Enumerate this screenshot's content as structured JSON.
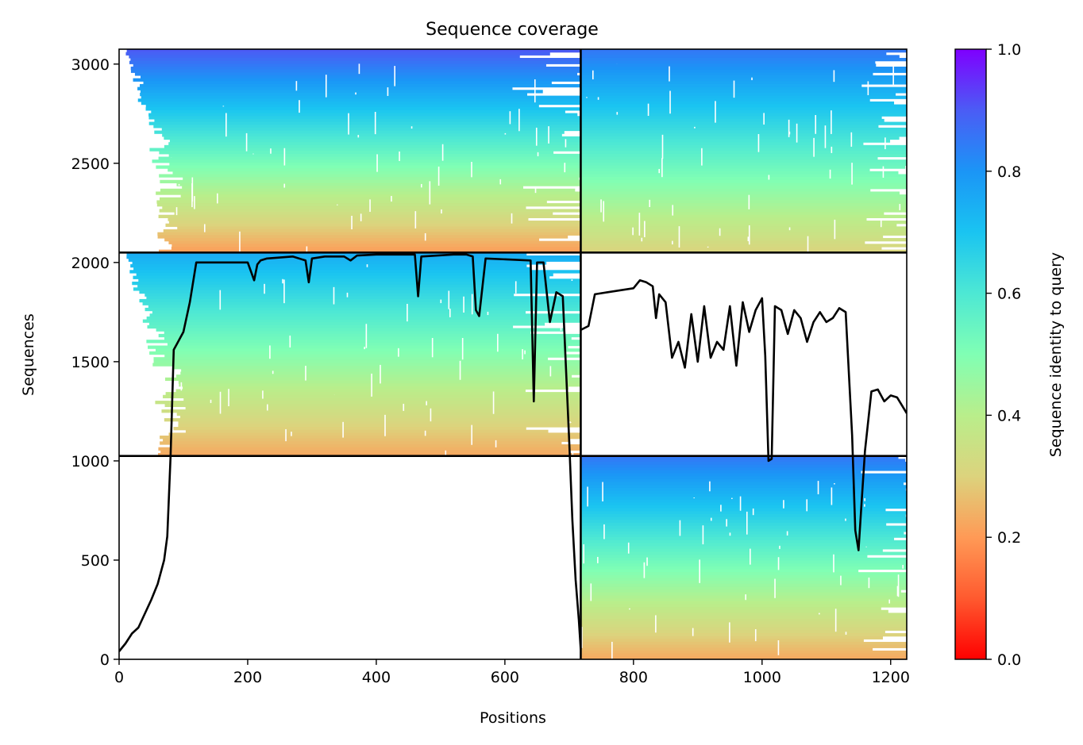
{
  "chart_data": {
    "type": "heatmap",
    "title": "Sequence coverage",
    "xlabel": "Positions",
    "ylabel": "Sequences",
    "xlim": [
      0,
      1225
    ],
    "ylim": [
      0,
      3075
    ],
    "x_ticks": [
      0,
      200,
      400,
      600,
      800,
      1000,
      1200
    ],
    "y_ticks": [
      0,
      500,
      1000,
      1500,
      2000,
      2500,
      3000
    ],
    "x_tick_labels": [
      "0",
      "200",
      "400",
      "600",
      "800",
      "1000",
      "1200"
    ],
    "y_tick_labels": [
      "0",
      "500",
      "1000",
      "1500",
      "2000",
      "2500",
      "3000"
    ],
    "colorbar": {
      "label": "Sequence identity to query",
      "range": [
        0,
        1
      ],
      "ticks": [
        0.0,
        0.2,
        0.4,
        0.6,
        0.8,
        1.0
      ],
      "tick_labels": [
        "0.0",
        "0.2",
        "0.4",
        "0.6",
        "0.8",
        "1.0"
      ],
      "colormap": "rainbow_r"
    },
    "chain_boundaries_x": [
      718
    ],
    "chain_boundaries_y": [
      1025,
      2050
    ],
    "blocks": [
      {
        "name": "chain-A-top",
        "x": [
          0,
          718
        ],
        "y": [
          2050,
          3075
        ],
        "identity_top": 0.9,
        "identity_bottom": 0.2,
        "coverage_start_shift": 80
      },
      {
        "name": "chain-A-middle",
        "x": [
          0,
          718
        ],
        "y": [
          1025,
          2050
        ],
        "identity_top": 0.75,
        "identity_bottom": 0.22,
        "coverage_start_shift": 80
      },
      {
        "name": "chain-B-top",
        "x": [
          718,
          1225
        ],
        "y": [
          2050,
          3075
        ],
        "identity_top": 0.85,
        "identity_bottom": 0.3,
        "coverage_start_shift": 0
      },
      {
        "name": "chain-B-bottom",
        "x": [
          718,
          1225
        ],
        "y": [
          0,
          1025
        ],
        "identity_top": 0.85,
        "identity_bottom": 0.22,
        "coverage_start_shift": 0
      }
    ],
    "coverage_series": [
      {
        "name": "",
        "x": [
          0,
          10,
          20,
          30,
          40,
          50,
          60,
          70,
          75,
          80,
          85,
          90,
          100,
          110,
          120,
          200,
          210,
          215,
          220,
          230,
          270,
          290,
          295,
          300,
          320,
          350,
          360,
          370,
          400,
          460,
          465,
          470,
          520,
          540,
          550,
          555,
          560,
          570,
          640,
          645,
          650,
          660,
          670,
          680,
          690,
          700,
          705,
          710,
          715,
          718
        ],
        "y": [
          40,
          80,
          130,
          160,
          230,
          300,
          380,
          500,
          620,
          1020,
          1560,
          1590,
          1650,
          1800,
          2000,
          2000,
          1910,
          1990,
          2010,
          2020,
          2030,
          2010,
          1900,
          2020,
          2030,
          2030,
          2010,
          2035,
          2040,
          2040,
          1830,
          2030,
          2040,
          2040,
          2030,
          1760,
          1730,
          2020,
          2010,
          1300,
          2000,
          2000,
          1700,
          1850,
          1830,
          1100,
          700,
          400,
          200,
          50
        ]
      },
      {
        "name": "",
        "x": [
          718,
          730,
          740,
          760,
          780,
          800,
          810,
          820,
          830,
          835,
          840,
          850,
          860,
          870,
          880,
          890,
          900,
          910,
          920,
          930,
          940,
          950,
          960,
          970,
          980,
          990,
          1000,
          1005,
          1010,
          1015,
          1020,
          1030,
          1040,
          1050,
          1060,
          1070,
          1080,
          1090,
          1100,
          1110,
          1120,
          1130,
          1140,
          1145,
          1150,
          1155,
          1160,
          1170,
          1180,
          1190,
          1200,
          1210,
          1225
        ],
        "y": [
          1660,
          1680,
          1840,
          1850,
          1860,
          1870,
          1910,
          1900,
          1880,
          1720,
          1840,
          1800,
          1520,
          1600,
          1470,
          1740,
          1500,
          1780,
          1520,
          1600,
          1560,
          1780,
          1480,
          1800,
          1650,
          1760,
          1820,
          1530,
          1000,
          1010,
          1780,
          1760,
          1640,
          1760,
          1720,
          1600,
          1700,
          1750,
          1700,
          1720,
          1770,
          1750,
          1130,
          650,
          550,
          800,
          1050,
          1350,
          1360,
          1300,
          1330,
          1320,
          1240
        ]
      }
    ]
  }
}
